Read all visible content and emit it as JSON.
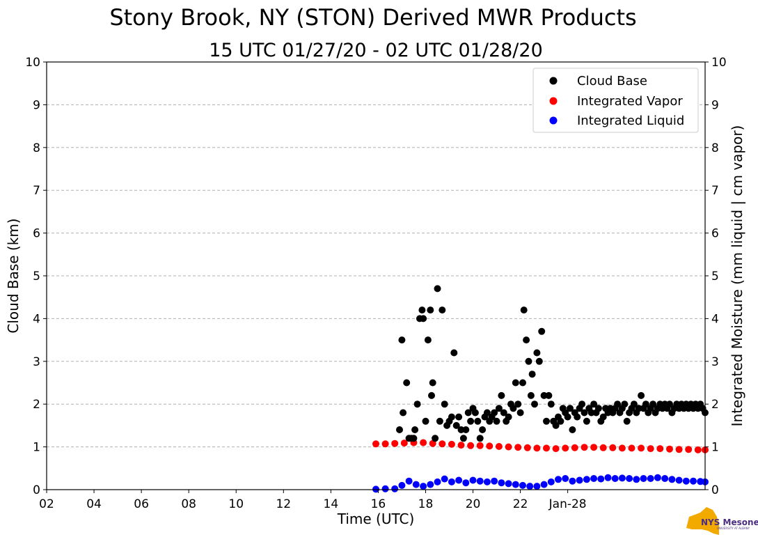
{
  "chart_data": {
    "type": "scatter",
    "title": "Stony Brook, NY (STON) Derived MWR Products",
    "subtitle": "15 UTC 01/27/20 - 02 UTC 01/28/20",
    "xlabel": "Time (UTC)",
    "ylabel_left": "Cloud Base (km)",
    "ylabel_right": "Integrated Moisture (mm liquid | cm vapor)",
    "xlim_hours": [
      2,
      29.8
    ],
    "ylim": [
      0,
      10
    ],
    "x_ticks": [
      {
        "hour": 2,
        "label": "02"
      },
      {
        "hour": 4,
        "label": "04"
      },
      {
        "hour": 6,
        "label": "06"
      },
      {
        "hour": 8,
        "label": "08"
      },
      {
        "hour": 10,
        "label": "10"
      },
      {
        "hour": 12,
        "label": "12"
      },
      {
        "hour": 14,
        "label": "14"
      },
      {
        "hour": 16,
        "label": "16"
      },
      {
        "hour": 18,
        "label": "18"
      },
      {
        "hour": 20,
        "label": "20"
      },
      {
        "hour": 22,
        "label": "22"
      },
      {
        "hour": 24,
        "label": "Jan-28"
      }
    ],
    "y_ticks": [
      "0",
      "1",
      "2",
      "3",
      "4",
      "5",
      "6",
      "7",
      "8",
      "9",
      "10"
    ],
    "grid": "horizontal dashed",
    "legend_position": "top-right",
    "series": [
      {
        "name": "Cloud Base",
        "color": "#000000",
        "x": [
          16.9,
          17.0,
          17.05,
          17.2,
          17.3,
          17.4,
          17.5,
          17.55,
          17.65,
          17.75,
          17.85,
          17.9,
          18.0,
          18.1,
          18.2,
          18.25,
          18.3,
          18.4,
          18.5,
          18.6,
          18.7,
          18.8,
          18.9,
          19.0,
          19.1,
          19.2,
          19.3,
          19.4,
          19.5,
          19.6,
          19.7,
          19.8,
          19.9,
          20.0,
          20.1,
          20.2,
          20.3,
          20.4,
          20.5,
          20.6,
          20.7,
          20.8,
          20.9,
          21.0,
          21.1,
          21.2,
          21.3,
          21.4,
          21.5,
          21.6,
          21.7,
          21.8,
          21.9,
          22.0,
          22.1,
          22.15,
          22.25,
          22.35,
          22.45,
          22.5,
          22.6,
          22.7,
          22.8,
          22.9,
          23.0,
          23.1,
          23.2,
          23.3,
          23.4,
          23.5,
          23.6,
          23.7,
          23.8,
          23.9,
          24.0,
          24.1,
          24.2,
          24.3,
          24.4,
          24.5,
          24.6,
          24.7,
          24.8,
          24.9,
          25.0,
          25.1,
          25.2,
          25.3,
          25.4,
          25.5,
          25.6,
          25.7,
          25.8,
          25.9,
          26.0,
          26.1,
          26.2,
          26.3,
          26.4,
          26.5,
          26.6,
          26.7,
          26.8,
          26.9,
          27.0,
          27.1,
          27.2,
          27.3,
          27.4,
          27.5,
          27.6,
          27.7,
          27.8,
          27.9,
          28.0,
          28.1,
          28.2,
          28.3,
          28.4,
          28.5,
          28.6,
          28.7,
          28.8,
          28.9,
          29.0,
          29.1,
          29.2,
          29.3,
          29.4,
          29.5,
          29.6,
          29.7,
          29.8
        ],
        "values": [
          1.4,
          3.5,
          1.8,
          2.5,
          1.2,
          1.2,
          1.2,
          1.4,
          2.0,
          4.0,
          4.2,
          4.0,
          1.6,
          3.5,
          4.2,
          2.2,
          2.5,
          1.2,
          4.7,
          1.6,
          4.2,
          2.0,
          1.5,
          1.6,
          1.7,
          3.2,
          1.5,
          1.7,
          1.4,
          1.2,
          1.4,
          1.8,
          1.6,
          1.9,
          1.8,
          1.6,
          1.2,
          1.4,
          1.7,
          1.8,
          1.6,
          1.7,
          1.8,
          1.6,
          1.9,
          2.2,
          1.8,
          1.6,
          1.7,
          2.0,
          1.9,
          2.5,
          2.0,
          1.8,
          2.5,
          4.2,
          3.5,
          3.0,
          2.2,
          2.7,
          2.0,
          3.2,
          3.0,
          3.7,
          2.2,
          1.6,
          2.2,
          2.0,
          1.6,
          1.5,
          1.7,
          1.6,
          1.9,
          1.8,
          1.7,
          1.9,
          1.4,
          1.8,
          1.7,
          1.9,
          2.0,
          1.8,
          1.6,
          1.9,
          1.8,
          2.0,
          1.8,
          1.9,
          1.6,
          1.7,
          1.9,
          1.8,
          1.9,
          1.8,
          1.9,
          2.0,
          1.8,
          1.9,
          2.0,
          1.6,
          1.8,
          1.9,
          2.0,
          1.8,
          1.9,
          2.2,
          1.9,
          2.0,
          1.8,
          1.9,
          2.0,
          1.8,
          1.9,
          2.0,
          1.9,
          2.0,
          1.9,
          2.0,
          1.8,
          1.9,
          2.0,
          1.9,
          2.0,
          1.9,
          2.0,
          1.9,
          2.0,
          1.9,
          2.0,
          1.9,
          2.0,
          1.9,
          1.8
        ]
      },
      {
        "name": "Integrated Vapor",
        "color": "#ff0000",
        "x": [
          15.9,
          16.3,
          16.7,
          17.1,
          17.5,
          17.9,
          18.3,
          18.7,
          19.1,
          19.5,
          19.9,
          20.3,
          20.7,
          21.1,
          21.5,
          21.9,
          22.3,
          22.7,
          23.1,
          23.5,
          23.9,
          24.3,
          24.7,
          25.1,
          25.5,
          25.9,
          26.3,
          26.7,
          27.1,
          27.5,
          27.9,
          28.3,
          28.7,
          29.1,
          29.5,
          29.8
        ],
        "values": [
          1.07,
          1.07,
          1.08,
          1.09,
          1.1,
          1.1,
          1.08,
          1.07,
          1.06,
          1.04,
          1.03,
          1.03,
          1.02,
          1.01,
          1.0,
          0.99,
          0.98,
          0.97,
          0.97,
          0.96,
          0.97,
          0.98,
          0.99,
          0.99,
          0.98,
          0.98,
          0.97,
          0.97,
          0.97,
          0.96,
          0.96,
          0.95,
          0.94,
          0.94,
          0.93,
          0.93
        ]
      },
      {
        "name": "Integrated Liquid",
        "color": "#0000ff",
        "x": [
          15.9,
          16.3,
          16.7,
          17.0,
          17.3,
          17.6,
          17.9,
          18.2,
          18.5,
          18.8,
          19.1,
          19.4,
          19.7,
          20.0,
          20.3,
          20.6,
          20.9,
          21.2,
          21.5,
          21.8,
          22.1,
          22.4,
          22.7,
          23.0,
          23.3,
          23.6,
          23.9,
          24.2,
          24.5,
          24.8,
          25.1,
          25.4,
          25.7,
          26.0,
          26.3,
          26.6,
          26.9,
          27.2,
          27.5,
          27.8,
          28.1,
          28.4,
          28.7,
          29.0,
          29.3,
          29.6,
          29.8
        ],
        "values": [
          0.01,
          0.02,
          0.02,
          0.1,
          0.2,
          0.12,
          0.08,
          0.12,
          0.18,
          0.25,
          0.18,
          0.22,
          0.16,
          0.22,
          0.2,
          0.18,
          0.2,
          0.16,
          0.14,
          0.12,
          0.1,
          0.08,
          0.08,
          0.12,
          0.18,
          0.24,
          0.26,
          0.2,
          0.22,
          0.24,
          0.26,
          0.25,
          0.28,
          0.26,
          0.27,
          0.26,
          0.24,
          0.26,
          0.26,
          0.28,
          0.26,
          0.24,
          0.22,
          0.2,
          0.2,
          0.19,
          0.18
        ]
      }
    ]
  },
  "logo": {
    "name": "NYS Mesonet",
    "subtext": "UNIVERSITY AT ALBANY"
  }
}
